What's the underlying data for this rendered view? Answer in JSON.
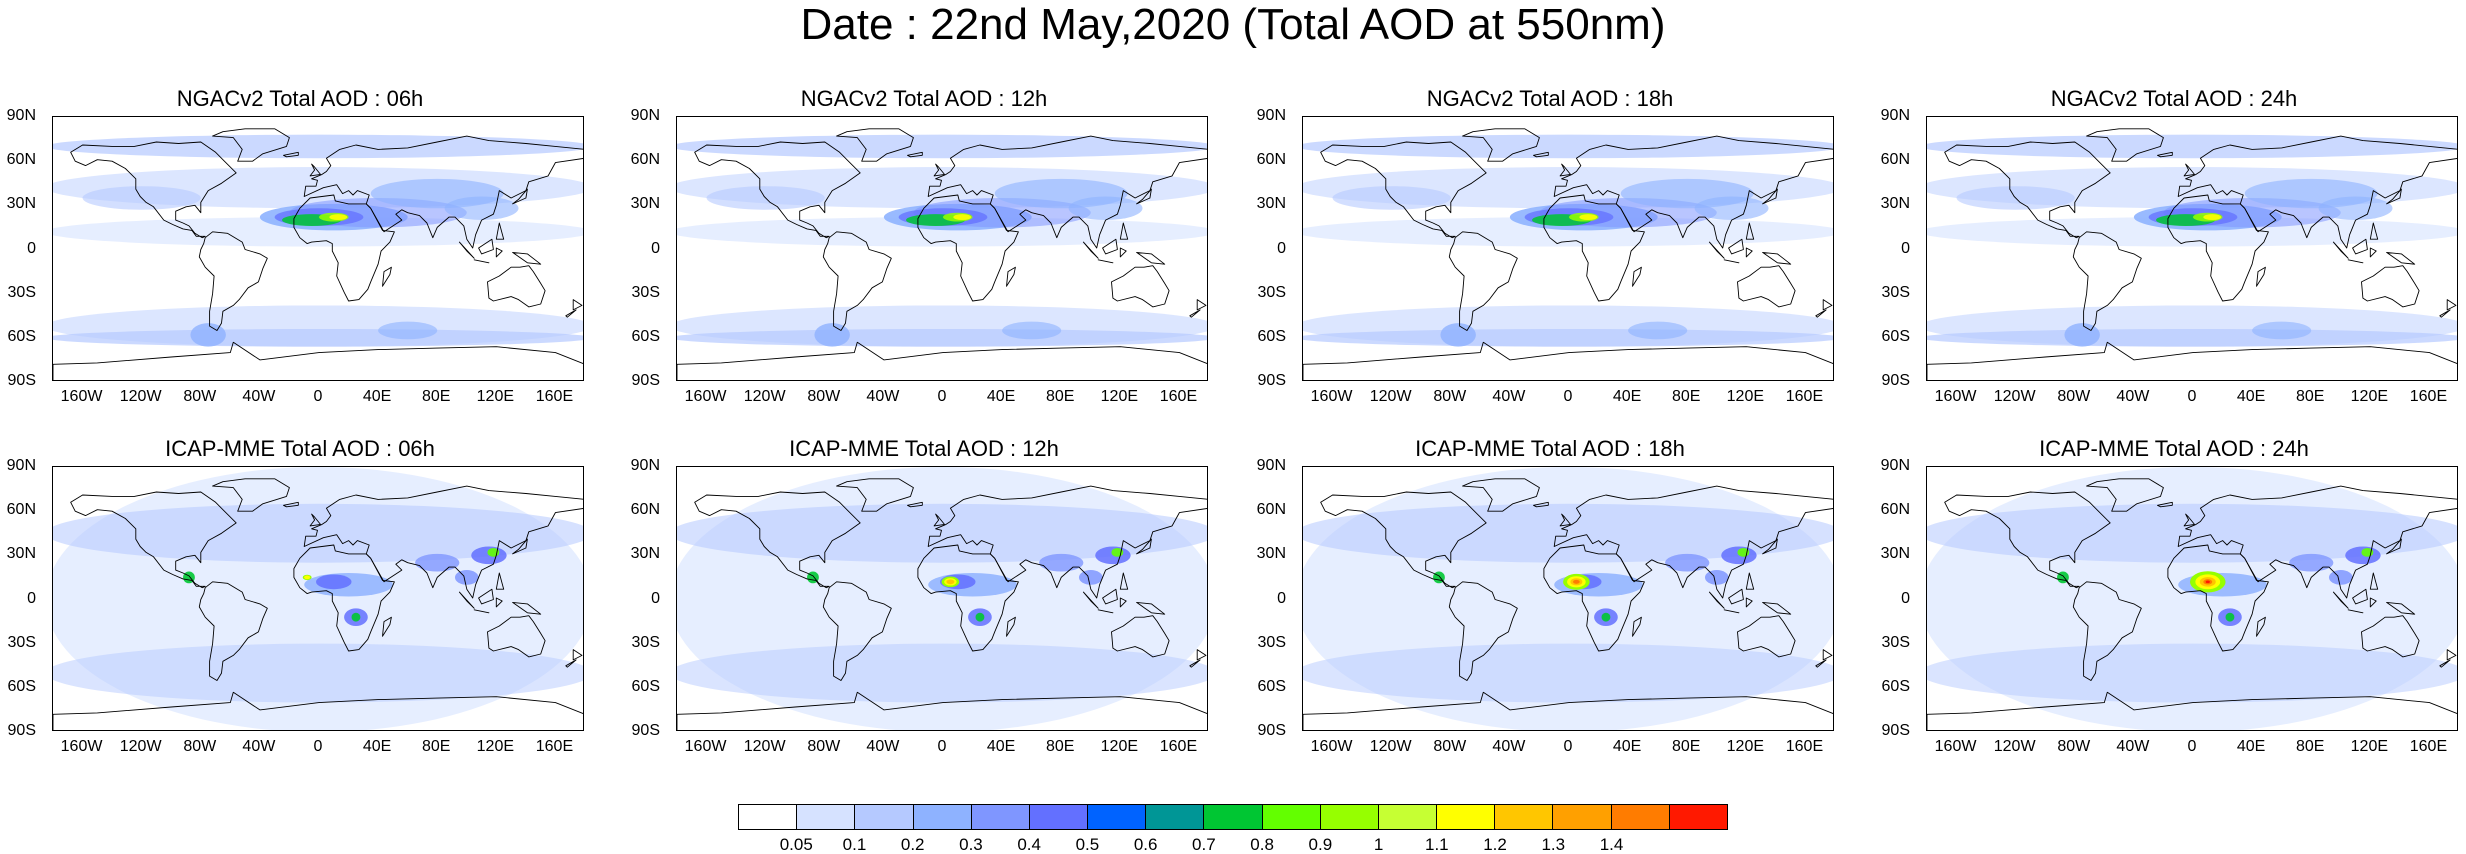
{
  "main_title": "Date : 22nd May,2020 (Total AOD at 550nm)",
  "lat_labels": [
    "90N",
    "60N",
    "30N",
    "0",
    "30S",
    "60S",
    "90S"
  ],
  "lon_labels": [
    "160W",
    "120W",
    "80W",
    "40W",
    "0",
    "40E",
    "80E",
    "120E",
    "160E"
  ],
  "panels": [
    {
      "title": "NGACv2 Total AOD : 06h",
      "model": "NGACv2"
    },
    {
      "title": "NGACv2 Total AOD : 12h",
      "model": "NGACv2"
    },
    {
      "title": "NGACv2 Total AOD : 18h",
      "model": "NGACv2"
    },
    {
      "title": "NGACv2 Total AOD : 24h",
      "model": "NGACv2"
    },
    {
      "title": "ICAP-MME Total AOD : 06h",
      "model": "ICAP-MME"
    },
    {
      "title": "ICAP-MME Total AOD : 12h",
      "model": "ICAP-MME"
    },
    {
      "title": "ICAP-MME Total AOD : 18h",
      "model": "ICAP-MME"
    },
    {
      "title": "ICAP-MME Total AOD : 24h",
      "model": "ICAP-MME"
    }
  ],
  "colorbar": {
    "labels": [
      "0.05",
      "0.1",
      "0.2",
      "0.3",
      "0.4",
      "0.5",
      "0.6",
      "0.7",
      "0.8",
      "0.9",
      "1",
      "1.1",
      "1.2",
      "1.3",
      "1.4"
    ],
    "colors": [
      "#ffffff",
      "#d6e2ff",
      "#b5c9ff",
      "#8eb2ff",
      "#7f96ff",
      "#6370ff",
      "#0063ff",
      "#009696",
      "#00c633",
      "#63ff00",
      "#96ff00",
      "#c6ff33",
      "#ffff00",
      "#ffc600",
      "#ffa000",
      "#ff7c00",
      "#ff1900"
    ]
  },
  "colors": {
    "land_outline": "#000000",
    "background": "#ffffff"
  }
}
